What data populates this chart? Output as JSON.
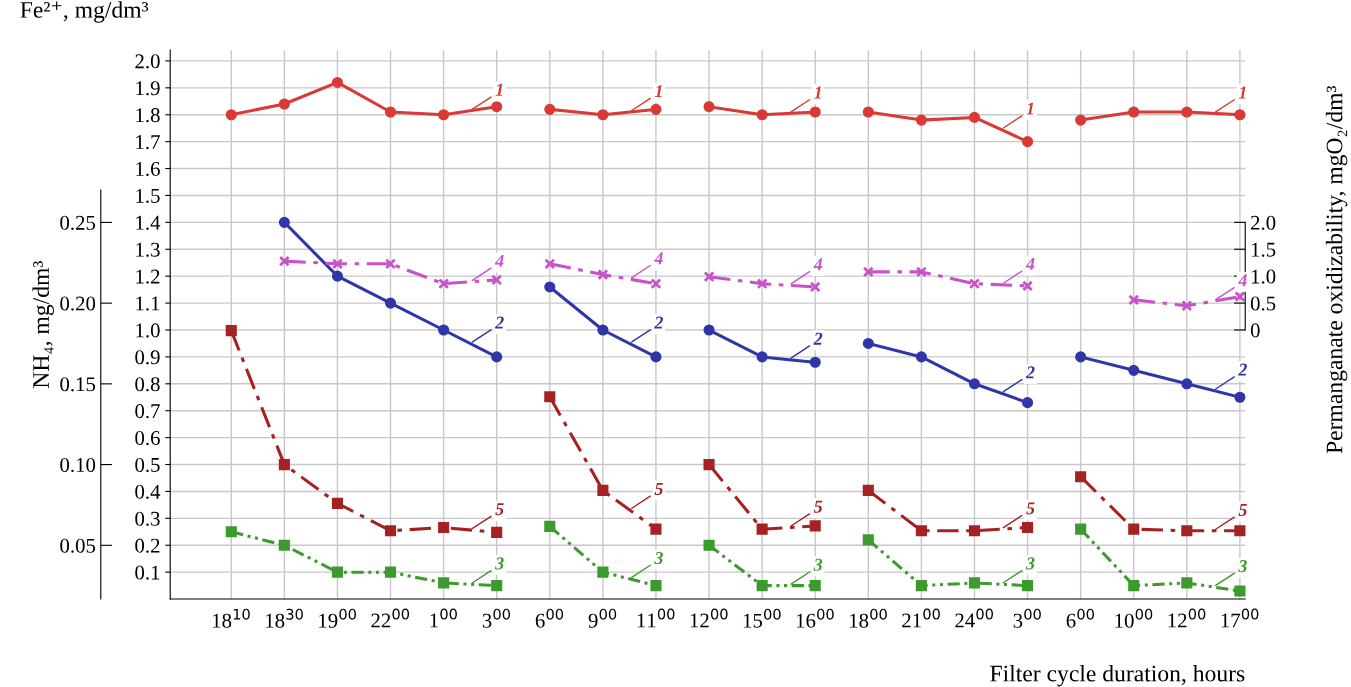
{
  "chart_data": {
    "type": "line",
    "grid": true,
    "categories": [
      "18$^{10}$",
      "18$^{30}$",
      "19$^{00}$",
      "22$^{00}$",
      "1$^{00}$",
      "3$^{00}$",
      "6$^{00}$",
      "9$^{00}$",
      "11$^{00}$",
      "12$^{00}$",
      "15$^{00}$",
      "16$^{00}$",
      "18$^{00}$",
      "21$^{00}$",
      "24$^{00}$",
      "3$^{00}$",
      "6$^{00}$",
      "10$^{00}$",
      "12$^{00}$",
      "17$^{00}$"
    ],
    "xlabel": "Filter cycle duration, hours",
    "ylabel": "Fe²⁺, mg/dm³",
    "y2label": "Permanganate oxidizability, mgO₂/dm³",
    "y3label": "NH₄, mg/dm³",
    "ylim": [
      0,
      2.04
    ],
    "yticks": [
      0.1,
      0.2,
      0.3,
      0.4,
      0.5,
      0.6,
      0.7,
      0.8,
      0.9,
      {
        "value": 1,
        "label": "1.0"
      },
      1.1,
      1.2,
      1.3,
      1.4,
      1.5,
      1.6,
      1.7,
      1.8,
      1.9,
      {
        "value": 2,
        "label": "2.0"
      }
    ],
    "y2lim": [
      -5,
      5.2
    ],
    "y2ticks": [
      0,
      0.5,
      {
        "value": 1,
        "label": "1.0"
      },
      1.5,
      {
        "value": 2,
        "label": "2.0"
      }
    ],
    "y3lim": [
      0.0167,
      0.3567
    ],
    "y3ticks": [
      {
        "value": 0.05,
        "label": "0.05"
      },
      {
        "value": 0.1,
        "label": "0.10"
      },
      {
        "value": 0.15,
        "label": "0.15"
      },
      {
        "value": 0.2,
        "label": "0.20"
      },
      {
        "value": 0.25,
        "label": "0.25"
      }
    ],
    "series": [
      {
        "name": "1",
        "color": "#d93a36",
        "marker": "circle",
        "line_style": "solid",
        "values": [
          1.8,
          1.84,
          1.92,
          1.81,
          1.8,
          1.83,
          null,
          null,
          null,
          null,
          null,
          null,
          null,
          null,
          null,
          null,
          null,
          null,
          null,
          null
        ]
      },
      {
        "name": "1",
        "color": "#d93a36",
        "marker": "circle",
        "line_style": "solid",
        "values": [
          null,
          null,
          null,
          null,
          null,
          null,
          1.82,
          1.8,
          1.82,
          null,
          null,
          null,
          null,
          null,
          null,
          null,
          null,
          null,
          null,
          null
        ]
      },
      {
        "name": "1",
        "color": "#d93a36",
        "marker": "circle",
        "line_style": "solid",
        "values": [
          null,
          null,
          null,
          null,
          null,
          null,
          null,
          null,
          null,
          1.83,
          1.8,
          1.81,
          null,
          null,
          null,
          null,
          null,
          null,
          null,
          null
        ]
      },
      {
        "name": "1",
        "color": "#d93a36",
        "marker": "circle",
        "line_style": "solid",
        "values": [
          null,
          null,
          null,
          null,
          null,
          null,
          null,
          null,
          null,
          null,
          null,
          null,
          1.81,
          1.78,
          1.79,
          1.7,
          null,
          null,
          null,
          null
        ]
      },
      {
        "name": "1",
        "color": "#d93a36",
        "marker": "circle",
        "line_style": "solid",
        "values": [
          null,
          null,
          null,
          null,
          null,
          null,
          null,
          null,
          null,
          null,
          null,
          null,
          null,
          null,
          null,
          null,
          1.78,
          1.81,
          1.81,
          1.8
        ]
      },
      {
        "name": "2",
        "color": "#2e36a8",
        "marker": "circle",
        "line_style": "solid",
        "values": [
          null,
          1.4,
          1.2,
          1.1,
          1.0,
          0.9,
          null,
          null,
          null,
          null,
          null,
          null,
          null,
          null,
          null,
          null,
          null,
          null,
          null,
          null
        ]
      },
      {
        "name": "2",
        "color": "#2e36a8",
        "marker": "circle",
        "line_style": "solid",
        "values": [
          null,
          null,
          null,
          null,
          null,
          null,
          1.16,
          1.0,
          0.9,
          null,
          null,
          null,
          null,
          null,
          null,
          null,
          null,
          null,
          null,
          null
        ]
      },
      {
        "name": "2",
        "color": "#2e36a8",
        "marker": "circle",
        "line_style": "solid",
        "values": [
          null,
          null,
          null,
          null,
          null,
          null,
          null,
          null,
          null,
          1.0,
          0.9,
          0.88,
          null,
          null,
          null,
          null,
          null,
          null,
          null,
          null
        ]
      },
      {
        "name": "2",
        "color": "#2e36a8",
        "marker": "circle",
        "line_style": "solid",
        "values": [
          null,
          null,
          null,
          null,
          null,
          null,
          null,
          null,
          null,
          null,
          null,
          null,
          0.95,
          0.9,
          0.8,
          0.73,
          null,
          null,
          null,
          null
        ]
      },
      {
        "name": "2",
        "color": "#2e36a8",
        "marker": "circle",
        "line_style": "solid",
        "values": [
          null,
          null,
          null,
          null,
          null,
          null,
          null,
          null,
          null,
          null,
          null,
          null,
          null,
          null,
          null,
          null,
          0.9,
          0.85,
          0.8,
          0.75
        ]
      },
      {
        "name": "3",
        "color": "#3d9a2e",
        "marker": "square",
        "line_style": "dotted",
        "values": [
          0.25,
          0.2,
          0.1,
          0.1,
          0.06,
          0.05,
          null,
          null,
          null,
          null,
          null,
          null,
          null,
          null,
          null,
          null,
          null,
          null,
          null,
          null
        ]
      },
      {
        "name": "3",
        "color": "#3d9a2e",
        "marker": "square",
        "line_style": "dotted",
        "values": [
          null,
          null,
          null,
          null,
          null,
          null,
          0.27,
          0.1,
          0.05,
          null,
          null,
          null,
          null,
          null,
          null,
          null,
          null,
          null,
          null,
          null
        ]
      },
      {
        "name": "3",
        "color": "#3d9a2e",
        "marker": "square",
        "line_style": "dotted",
        "values": [
          null,
          null,
          null,
          null,
          null,
          null,
          null,
          null,
          null,
          0.2,
          0.05,
          0.05,
          null,
          null,
          null,
          null,
          null,
          null,
          null,
          null
        ]
      },
      {
        "name": "3",
        "color": "#3d9a2e",
        "marker": "square",
        "line_style": "dotted",
        "values": [
          null,
          null,
          null,
          null,
          null,
          null,
          null,
          null,
          null,
          null,
          null,
          null,
          0.22,
          0.05,
          0.06,
          0.05,
          null,
          null,
          null,
          null
        ]
      },
      {
        "name": "3",
        "color": "#3d9a2e",
        "marker": "square",
        "line_style": "dotted",
        "values": [
          null,
          null,
          null,
          null,
          null,
          null,
          null,
          null,
          null,
          null,
          null,
          null,
          null,
          null,
          null,
          null,
          0.26,
          0.05,
          0.06,
          0.03
        ]
      },
      {
        "name": "4",
        "color": "#c852c8",
        "marker": "cross",
        "line_style": "dashed",
        "axis": "y2",
        "values": [
          null,
          1.28,
          1.23,
          1.23,
          0.86,
          0.93,
          null,
          null,
          null,
          null,
          null,
          null,
          null,
          null,
          null,
          null,
          null,
          null,
          null,
          null
        ]
      },
      {
        "name": "4",
        "color": "#c852c8",
        "marker": "cross",
        "line_style": "dashed",
        "axis": "y2",
        "values": [
          null,
          null,
          null,
          null,
          null,
          null,
          1.23,
          1.03,
          0.86,
          null,
          null,
          null,
          null,
          null,
          null,
          null,
          null,
          null,
          null,
          null
        ]
      },
      {
        "name": "4",
        "color": "#c852c8",
        "marker": "cross",
        "line_style": "dashed",
        "axis": "y2",
        "values": [
          null,
          null,
          null,
          null,
          null,
          null,
          null,
          null,
          null,
          0.99,
          0.86,
          0.8,
          null,
          null,
          null,
          null,
          null,
          null,
          null,
          null
        ]
      },
      {
        "name": "4",
        "color": "#c852c8",
        "marker": "cross",
        "line_style": "dashed",
        "axis": "y2",
        "values": [
          null,
          null,
          null,
          null,
          null,
          null,
          null,
          null,
          null,
          null,
          null,
          null,
          1.08,
          1.08,
          0.86,
          0.82,
          null,
          null,
          null,
          null
        ]
      },
      {
        "name": "4",
        "color": "#c852c8",
        "marker": "cross",
        "line_style": "dashed",
        "axis": "y2",
        "values": [
          null,
          null,
          null,
          null,
          null,
          null,
          null,
          null,
          null,
          null,
          null,
          null,
          null,
          null,
          null,
          null,
          null,
          0.56,
          0.45,
          0.62
        ]
      },
      {
        "name": "5",
        "color": "#a52222",
        "marker": "square",
        "line_style": "dashed",
        "axis": "y3",
        "values": [
          0.183,
          0.1,
          0.076,
          0.059,
          0.061,
          0.058,
          null,
          null,
          null,
          null,
          null,
          null,
          null,
          null,
          null,
          null,
          null,
          null,
          null,
          null
        ]
      },
      {
        "name": "5",
        "color": "#a52222",
        "marker": "square",
        "line_style": "dashed",
        "axis": "y3",
        "values": [
          null,
          null,
          null,
          null,
          null,
          null,
          0.142,
          0.084,
          0.06,
          null,
          null,
          null,
          null,
          null,
          null,
          null,
          null,
          null,
          null,
          null
        ]
      },
      {
        "name": "5",
        "color": "#a52222",
        "marker": "square",
        "line_style": "dashed",
        "axis": "y3",
        "values": [
          null,
          null,
          null,
          null,
          null,
          null,
          null,
          null,
          null,
          0.1,
          0.06,
          0.062,
          null,
          null,
          null,
          null,
          null,
          null,
          null,
          null
        ]
      },
      {
        "name": "5",
        "color": "#a52222",
        "marker": "square",
        "line_style": "dashed",
        "axis": "y3",
        "values": [
          null,
          null,
          null,
          null,
          null,
          null,
          null,
          null,
          null,
          null,
          null,
          null,
          0.084,
          0.059,
          0.059,
          0.061,
          null,
          null,
          null,
          null
        ]
      },
      {
        "name": "5",
        "color": "#a52222",
        "marker": "square",
        "line_style": "dashed",
        "axis": "y3",
        "values": [
          null,
          null,
          null,
          null,
          null,
          null,
          null,
          null,
          null,
          null,
          null,
          null,
          null,
          null,
          null,
          null,
          0.0925,
          0.06,
          0.059,
          0.059
        ]
      }
    ]
  }
}
